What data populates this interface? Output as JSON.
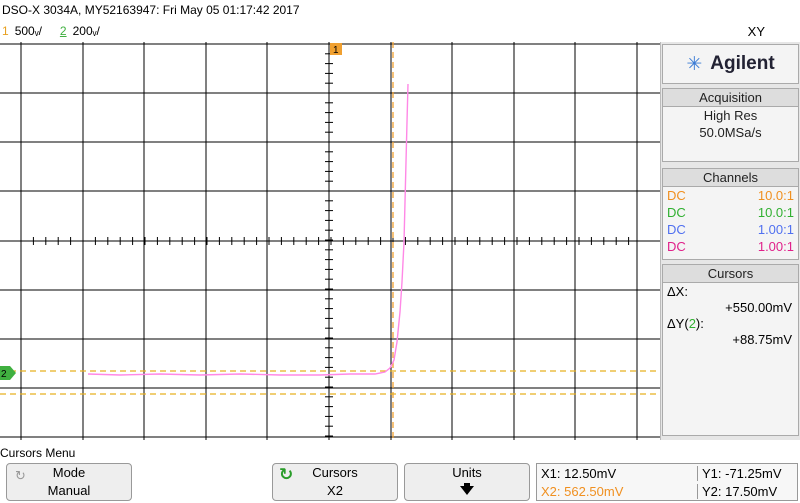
{
  "header": {
    "title": "DSO-X 3034A, MY52163947: Fri May 05 01:17:42 2017",
    "mode": "XY",
    "channels": [
      {
        "num": "1",
        "scale": "500̅/",
        "color": "#e8a020"
      },
      {
        "num": "2",
        "scale": "200̅/",
        "color": "#40b040"
      }
    ],
    "ch1_num": "1",
    "ch1_scale": "500ᵥ/",
    "ch2_num": "2",
    "ch2_scale": "200ᵥ/"
  },
  "screen": {
    "marker_1": "1",
    "marker_2": "2"
  },
  "panel": {
    "brand": "Agilent",
    "acquisition": {
      "title": "Acquisition",
      "mode": "High Res",
      "rate": "50.0MSa/s"
    },
    "channels": {
      "title": "Channels",
      "rows": [
        {
          "coupling": "DC",
          "probe": "10.0:1",
          "color": "#f09020"
        },
        {
          "coupling": "DC",
          "probe": "10.0:1",
          "color": "#30b030"
        },
        {
          "coupling": "DC",
          "probe": "1.00:1",
          "color": "#5070f0"
        },
        {
          "coupling": "DC",
          "probe": "1.00:1",
          "color": "#e0208a"
        }
      ]
    },
    "cursors": {
      "title": "Cursors",
      "dx_label": "ΔX:",
      "dx_value": "+550.00mV",
      "dy_label": "ΔY(",
      "dy_channel": "2",
      "dy_close": "):",
      "dy_value": "+88.75mV"
    }
  },
  "bottom": {
    "menu_title": "Cursors Menu",
    "mode_key": {
      "title": "Mode",
      "value": "Manual"
    },
    "cursors_key": {
      "title": "Cursors",
      "value": "X2"
    },
    "units_key": {
      "title": "Units"
    },
    "readout": {
      "x1": "X1: 12.50mV",
      "x2": "X2: 562.50mV",
      "y1": "Y1: -71.25mV",
      "y2": "Y2: 17.50mV"
    }
  },
  "colors": {
    "ch1": "#e8a020",
    "ch2": "#40b040",
    "trace": "#ff80e0"
  }
}
